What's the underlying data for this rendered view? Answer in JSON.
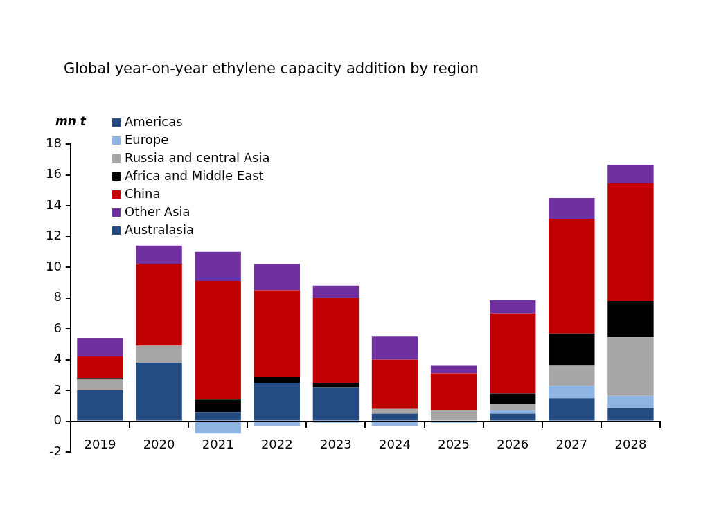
{
  "chart_data": {
    "type": "bar",
    "stacked": true,
    "title": "Global year-on-year ethylene capacity addition by region",
    "ylabel": "mn t",
    "categories": [
      "2019",
      "2020",
      "2021",
      "2022",
      "2023",
      "2024",
      "2025",
      "2026",
      "2027",
      "2028"
    ],
    "series": [
      {
        "name": "Americas",
        "color": "#244c82",
        "values": [
          2.0,
          3.8,
          0.6,
          2.5,
          2.2,
          0.5,
          0,
          0.5,
          1.5,
          0.85
        ]
      },
      {
        "name": "Europe",
        "color": "#8db4e2",
        "values": [
          0,
          0,
          -0.8,
          -0.3,
          -0.1,
          -0.3,
          -0.1,
          0.2,
          0.8,
          0.8
        ]
      },
      {
        "name": "Russia and central Asia",
        "color": "#a6a6a6",
        "values": [
          0.7,
          1.1,
          0,
          0,
          0,
          0.3,
          0.7,
          0.4,
          1.3,
          3.8
        ]
      },
      {
        "name": "Africa and Middle East",
        "color": "#000000",
        "values": [
          0.1,
          0,
          0.8,
          0.4,
          0.3,
          0,
          0,
          0.7,
          2.1,
          2.35
        ]
      },
      {
        "name": "China",
        "color": "#c00000",
        "values": [
          1.4,
          5.3,
          7.7,
          5.6,
          5.5,
          3.2,
          2.4,
          5.2,
          7.45,
          7.65
        ]
      },
      {
        "name": "Other Asia",
        "color": "#7030a0",
        "values": [
          1.2,
          1.2,
          1.9,
          1.7,
          0.8,
          1.5,
          0.5,
          0.85,
          1.35,
          1.2
        ]
      },
      {
        "name": "Australasia",
        "color": "#244c82",
        "values": [
          0,
          0,
          0,
          0,
          0,
          0,
          0,
          0,
          0,
          0
        ]
      }
    ],
    "ylim": [
      -2,
      18
    ],
    "yticks": [
      -2,
      0,
      2,
      4,
      6,
      8,
      10,
      12,
      14,
      16,
      18
    ],
    "grid": false,
    "legend": "top left"
  }
}
